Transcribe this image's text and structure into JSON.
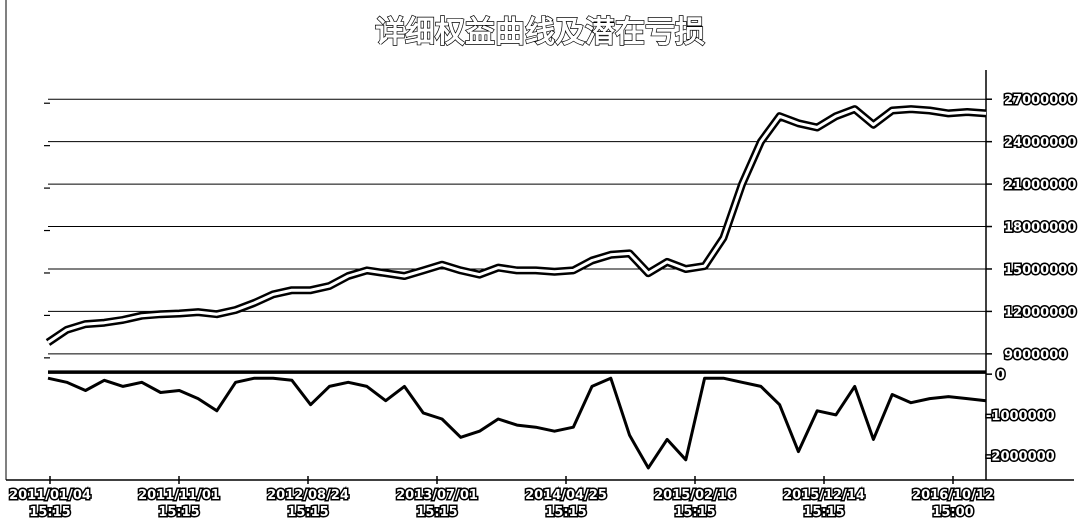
{
  "chart_data": [
    {
      "type": "line",
      "title": "详细权益曲线及潜在亏损",
      "panel": "equity",
      "ylim": [
        8000000,
        28500000
      ],
      "yticks": [
        9000000,
        12000000,
        15000000,
        18000000,
        21000000,
        24000000,
        27000000
      ],
      "ytick_labels": [
        "9000000",
        "12000000",
        "15000000",
        "18000000",
        "21000000",
        "24000000",
        "27000000"
      ],
      "grid": true,
      "series": [
        {
          "x": [
            0,
            0.02,
            0.04,
            0.06,
            0.08,
            0.1,
            0.12,
            0.14,
            0.16,
            0.18,
            0.2,
            0.22,
            0.24,
            0.26,
            0.28,
            0.3,
            0.32,
            0.34,
            0.36,
            0.38,
            0.4,
            0.42,
            0.44,
            0.46,
            0.48,
            0.5,
            0.52,
            0.54,
            0.56,
            0.58,
            0.6,
            0.62,
            0.64,
            0.66,
            0.68,
            0.7,
            0.72,
            0.74,
            0.76,
            0.78,
            0.8,
            0.82,
            0.84,
            0.86,
            0.88,
            0.9,
            0.92,
            0.94,
            0.96,
            0.98,
            1
          ],
          "y": [
            9800000,
            10700000,
            11100000,
            11200000,
            11400000,
            11700000,
            11800000,
            11850000,
            11950000,
            11800000,
            12100000,
            12600000,
            13200000,
            13500000,
            13500000,
            13800000,
            14500000,
            14900000,
            14700000,
            14500000,
            14900000,
            15300000,
            14900000,
            14600000,
            15100000,
            14900000,
            14900000,
            14800000,
            14900000,
            15600000,
            16000000,
            16100000,
            14700000,
            15500000,
            15000000,
            15200000,
            17200000,
            21000000,
            24000000,
            25800000,
            25300000,
            25000000,
            25800000,
            26300000,
            25200000,
            26200000,
            26300000,
            26200000,
            26000000,
            26100000,
            26000000
          ]
        }
      ],
      "x_dates": [
        "2011/01/04",
        "2011/11/01",
        "2012/08/24",
        "2013/07/01",
        "2014/04/25",
        "2015/02/16",
        "2015/12/14",
        "2016/10/12"
      ],
      "x_times": [
        "15:15",
        "15:15",
        "15:15",
        "15:15",
        "15:15",
        "15:15",
        "15:15",
        "15:00"
      ]
    },
    {
      "type": "line",
      "panel": "drawdown",
      "ylim": [
        -2400000,
        200000
      ],
      "yticks": [
        0,
        -1000000,
        -2000000
      ],
      "ytick_labels": [
        "0",
        "-1000000",
        "-2000000"
      ],
      "grid": false,
      "series": [
        {
          "x": [
            0,
            0.02,
            0.04,
            0.06,
            0.08,
            0.1,
            0.12,
            0.14,
            0.16,
            0.18,
            0.2,
            0.22,
            0.24,
            0.26,
            0.28,
            0.3,
            0.32,
            0.34,
            0.36,
            0.38,
            0.4,
            0.42,
            0.44,
            0.46,
            0.48,
            0.5,
            0.52,
            0.54,
            0.56,
            0.58,
            0.6,
            0.62,
            0.64,
            0.66,
            0.68,
            0.7,
            0.72,
            0.74,
            0.76,
            0.78,
            0.8,
            0.82,
            0.84,
            0.86,
            0.88,
            0.9,
            0.92,
            0.94,
            0.96,
            0.98,
            1
          ],
          "y": [
            -100000,
            -200000,
            -400000,
            -150000,
            -300000,
            -200000,
            -450000,
            -400000,
            -600000,
            -900000,
            -200000,
            -100000,
            -100000,
            -150000,
            -750000,
            -300000,
            -200000,
            -300000,
            -650000,
            -300000,
            -950000,
            -1100000,
            -1550000,
            -1400000,
            -1100000,
            -1250000,
            -1300000,
            -1400000,
            -1300000,
            -300000,
            -100000,
            -1500000,
            -2300000,
            -1600000,
            -2100000,
            -100000,
            -100000,
            -200000,
            -300000,
            -750000,
            -1900000,
            -900000,
            -1000000,
            -300000,
            -1600000,
            -500000,
            -700000,
            -600000,
            -550000,
            -600000,
            -650000
          ]
        }
      ]
    }
  ]
}
